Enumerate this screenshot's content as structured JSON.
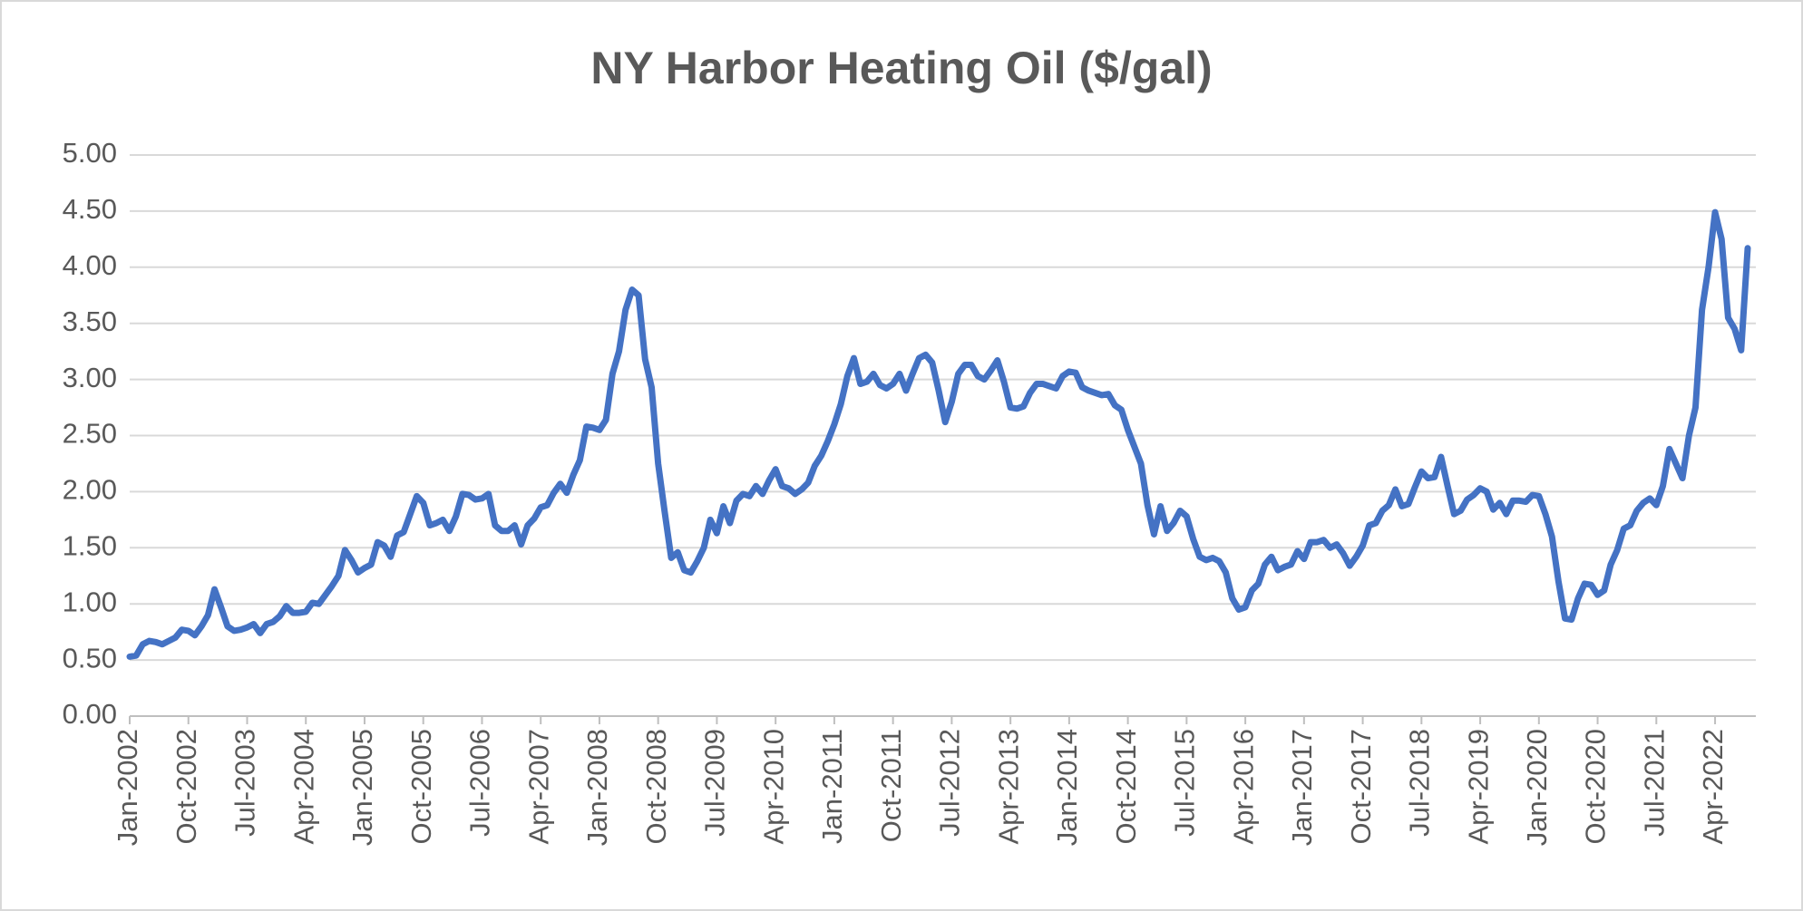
{
  "chart_data": {
    "type": "line",
    "title": "NY Harbor Heating Oil ($/gal)",
    "categories": [
      "Jan-2002",
      null,
      null,
      null,
      null,
      null,
      null,
      null,
      null,
      "Oct-2002",
      null,
      null,
      null,
      null,
      null,
      null,
      null,
      null,
      "Jul-2003",
      null,
      null,
      null,
      null,
      null,
      null,
      null,
      null,
      "Apr-2004",
      null,
      null,
      null,
      null,
      null,
      null,
      null,
      null,
      "Jan-2005",
      null,
      null,
      null,
      null,
      null,
      null,
      null,
      null,
      "Oct-2005",
      null,
      null,
      null,
      null,
      null,
      null,
      null,
      null,
      "Jul-2006",
      null,
      null,
      null,
      null,
      null,
      null,
      null,
      null,
      "Apr-2007",
      null,
      null,
      null,
      null,
      null,
      null,
      null,
      null,
      "Jan-2008",
      null,
      null,
      null,
      null,
      null,
      null,
      null,
      null,
      "Oct-2008",
      null,
      null,
      null,
      null,
      null,
      null,
      null,
      null,
      "Jul-2009",
      null,
      null,
      null,
      null,
      null,
      null,
      null,
      null,
      "Apr-2010",
      null,
      null,
      null,
      null,
      null,
      null,
      null,
      null,
      "Jan-2011",
      null,
      null,
      null,
      null,
      null,
      null,
      null,
      null,
      "Oct-2011",
      null,
      null,
      null,
      null,
      null,
      null,
      null,
      null,
      "Jul-2012",
      null,
      null,
      null,
      null,
      null,
      null,
      null,
      null,
      "Apr-2013",
      null,
      null,
      null,
      null,
      null,
      null,
      null,
      null,
      "Jan-2014",
      null,
      null,
      null,
      null,
      null,
      null,
      null,
      null,
      "Oct-2014",
      null,
      null,
      null,
      null,
      null,
      null,
      null,
      null,
      "Jul-2015",
      null,
      null,
      null,
      null,
      null,
      null,
      null,
      null,
      "Apr-2016",
      null,
      null,
      null,
      null,
      null,
      null,
      null,
      null,
      "Jan-2017",
      null,
      null,
      null,
      null,
      null,
      null,
      null,
      null,
      "Oct-2017",
      null,
      null,
      null,
      null,
      null,
      null,
      null,
      null,
      "Jul-2018",
      null,
      null,
      null,
      null,
      null,
      null,
      null,
      null,
      "Apr-2019",
      null,
      null,
      null,
      null,
      null,
      null,
      null,
      null,
      "Jan-2020",
      null,
      null,
      null,
      null,
      null,
      null,
      null,
      null,
      "Oct-2020",
      null,
      null,
      null,
      null,
      null,
      null,
      null,
      null,
      "Jul-2021",
      null,
      null,
      null,
      null,
      null,
      null,
      null,
      null,
      "Apr-2022",
      null,
      null,
      null,
      null,
      null
    ],
    "series": [
      {
        "name": "NY Harbor Heating Oil",
        "color": "#4472c4",
        "values": [
          0.53,
          0.54,
          0.64,
          0.67,
          0.66,
          0.64,
          0.67,
          0.7,
          0.77,
          0.76,
          0.72,
          0.8,
          0.9,
          1.13,
          0.97,
          0.8,
          0.76,
          0.77,
          0.79,
          0.82,
          0.74,
          0.82,
          0.84,
          0.89,
          0.98,
          0.92,
          0.92,
          0.93,
          1.01,
          1.0,
          1.08,
          1.16,
          1.25,
          1.48,
          1.39,
          1.28,
          1.32,
          1.35,
          1.55,
          1.52,
          1.42,
          1.61,
          1.64,
          1.8,
          1.96,
          1.9,
          1.7,
          1.72,
          1.75,
          1.65,
          1.78,
          1.98,
          1.97,
          1.93,
          1.94,
          1.98,
          1.7,
          1.65,
          1.65,
          1.7,
          1.53,
          1.7,
          1.76,
          1.86,
          1.88,
          1.99,
          2.07,
          1.99,
          2.15,
          2.28,
          2.58,
          2.57,
          2.55,
          2.64,
          3.05,
          3.25,
          3.62,
          3.8,
          3.75,
          3.18,
          2.93,
          2.25,
          1.82,
          1.41,
          1.46,
          1.3,
          1.28,
          1.38,
          1.5,
          1.75,
          1.63,
          1.87,
          1.72,
          1.92,
          1.98,
          1.96,
          2.05,
          1.98,
          2.1,
          2.2,
          2.05,
          2.03,
          1.98,
          2.02,
          2.08,
          2.23,
          2.32,
          2.45,
          2.6,
          2.78,
          3.03,
          3.19,
          2.96,
          2.98,
          3.05,
          2.95,
          2.92,
          2.96,
          3.05,
          2.9,
          3.05,
          3.19,
          3.22,
          3.15,
          2.9,
          2.62,
          2.8,
          3.05,
          3.13,
          3.13,
          3.03,
          3.0,
          3.08,
          3.17,
          2.98,
          2.75,
          2.74,
          2.76,
          2.88,
          2.96,
          2.96,
          2.94,
          2.92,
          3.03,
          3.07,
          3.06,
          2.93,
          2.9,
          2.88,
          2.86,
          2.87,
          2.77,
          2.73,
          2.55,
          2.4,
          2.25,
          1.88,
          1.62,
          1.87,
          1.65,
          1.72,
          1.83,
          1.78,
          1.58,
          1.42,
          1.39,
          1.41,
          1.38,
          1.28,
          1.05,
          0.95,
          0.97,
          1.12,
          1.18,
          1.35,
          1.42,
          1.3,
          1.33,
          1.35,
          1.47,
          1.4,
          1.55,
          1.55,
          1.57,
          1.5,
          1.53,
          1.45,
          1.34,
          1.42,
          1.52,
          1.7,
          1.72,
          1.83,
          1.88,
          2.02,
          1.87,
          1.89,
          2.04,
          2.18,
          2.12,
          2.13,
          2.31,
          2.05,
          1.8,
          1.83,
          1.93,
          1.97,
          2.03,
          2.0,
          1.84,
          1.9,
          1.8,
          1.92,
          1.92,
          1.91,
          1.97,
          1.96,
          1.8,
          1.6,
          1.2,
          0.87,
          0.86,
          1.05,
          1.18,
          1.17,
          1.08,
          1.12,
          1.35,
          1.48,
          1.67,
          1.7,
          1.83,
          1.9,
          1.94,
          1.88,
          2.05,
          2.38,
          2.25,
          2.12,
          2.5,
          2.75,
          3.62,
          4.0,
          4.49,
          4.25,
          3.55,
          3.45,
          3.26,
          4.17
        ]
      }
    ],
    "ylim": [
      0,
      5
    ],
    "yticks": [
      {
        "value": 0,
        "label": "0.00"
      },
      {
        "value": 0.5,
        "label": "0.50"
      },
      {
        "value": 1,
        "label": "1.00"
      },
      {
        "value": 1.5,
        "label": "1.50"
      },
      {
        "value": 2,
        "label": "2.00"
      },
      {
        "value": 2.5,
        "label": "2.50"
      },
      {
        "value": 3,
        "label": "3.00"
      },
      {
        "value": 3.5,
        "label": "3.50"
      },
      {
        "value": 4,
        "label": "4.00"
      },
      {
        "value": 4.5,
        "label": "4.50"
      },
      {
        "value": 5,
        "label": "5.00"
      }
    ],
    "grid": true
  }
}
